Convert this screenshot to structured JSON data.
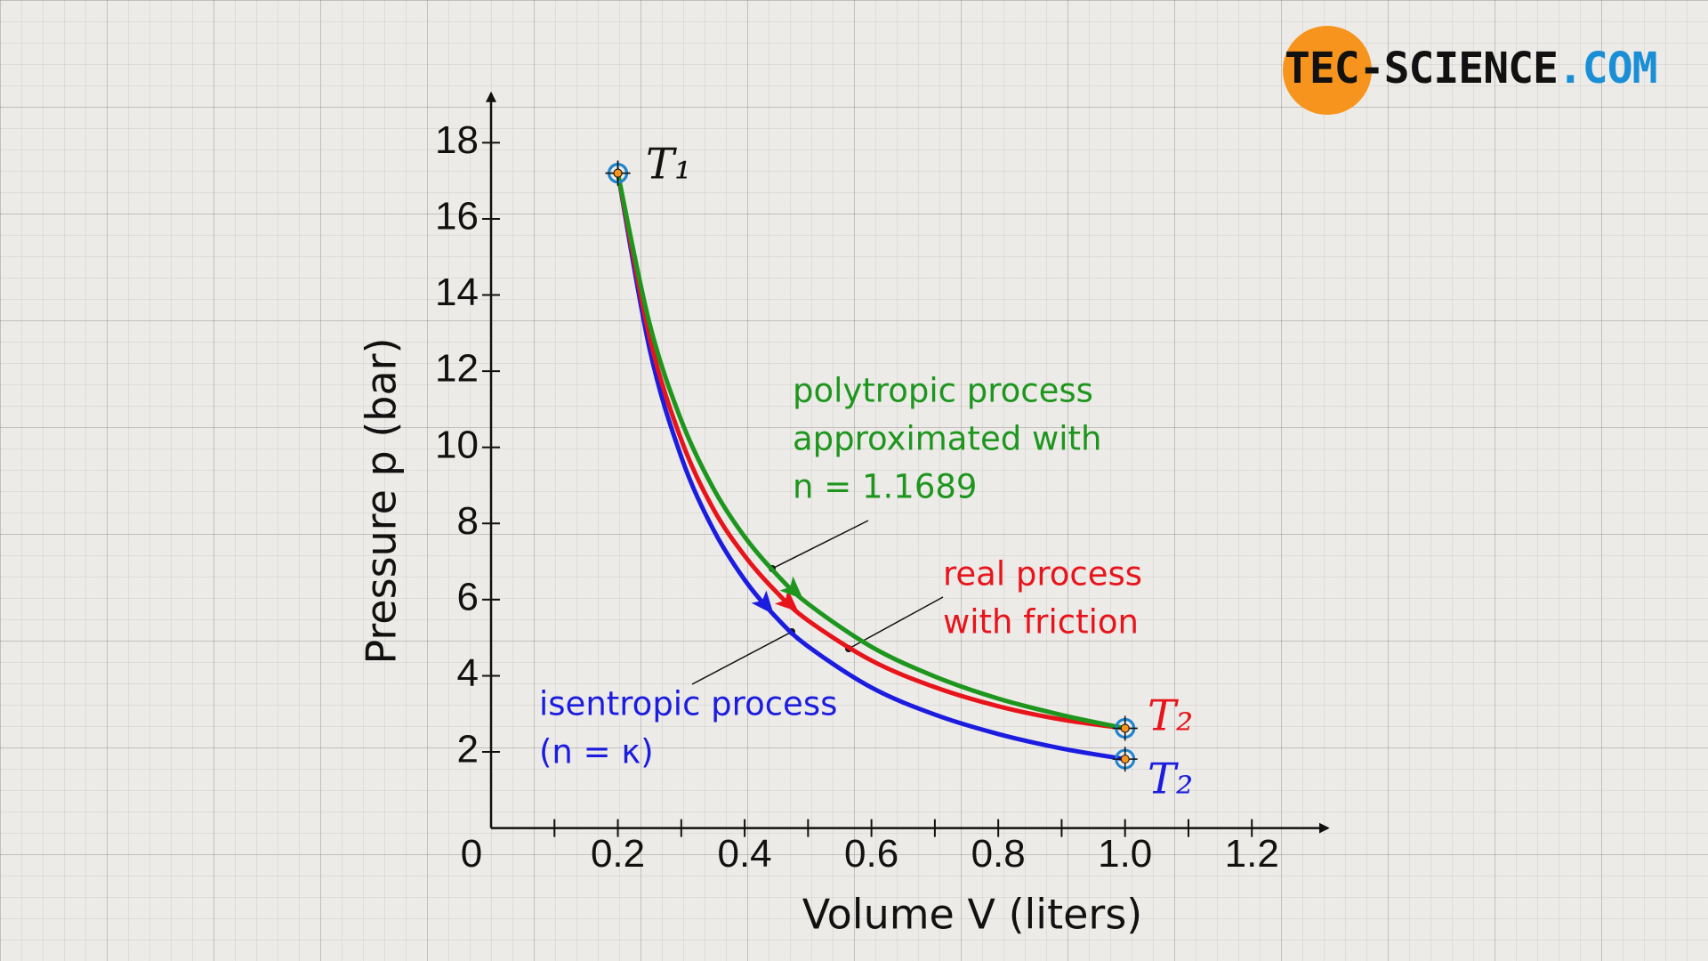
{
  "chart_data": {
    "type": "line",
    "x": [
      0.2,
      0.25,
      0.3,
      0.35,
      0.4,
      0.45,
      0.5,
      0.6,
      0.7,
      0.8,
      0.9,
      1.0
    ],
    "series": [
      {
        "color": "#1c1ce0",
        "values": [
          17.2,
          12.59,
          9.75,
          7.86,
          6.52,
          5.53,
          4.77,
          3.69,
          2.98,
          2.47,
          2.09,
          1.81
        ]
      },
      {
        "color": "#1e961e",
        "values": [
          17.2,
          13.25,
          10.71,
          8.94,
          7.65,
          6.67,
          5.89,
          4.76,
          3.98,
          3.4,
          2.97,
          2.62
        ]
      },
      {
        "color": "#e8141b",
        "values": [
          17.2,
          12.9,
          10.2,
          8.4,
          7.15,
          6.2,
          5.45,
          4.4,
          3.7,
          3.2,
          2.85,
          2.62
        ]
      }
    ],
    "xlabel": "Volume V (liters)",
    "ylabel": "Pressure p (bar)",
    "xlim": [
      0,
      1.32
    ],
    "ylim": [
      0,
      19.3
    ],
    "xticks": [
      0,
      0.2,
      0.4,
      0.6,
      0.8,
      {
        "value": 1,
        "label": "1.0"
      },
      1.2
    ],
    "xminorticks": [
      0.1,
      0.3,
      0.5,
      0.7,
      0.9,
      1.1
    ],
    "yticks": [
      2,
      4,
      6,
      8,
      10,
      12,
      14,
      16,
      18
    ],
    "annotations": [
      {
        "lines": [
          "polytropic process",
          "approximated with",
          "n = 1.1689"
        ],
        "color": "#1e961e"
      },
      {
        "lines": [
          "real process",
          "with friction"
        ],
        "color": "#e8141b"
      },
      {
        "lines": [
          "isentropic process",
          "(n = κ)"
        ],
        "color": "#1c1ce0"
      }
    ],
    "point_labels": [
      {
        "text": "T₁",
        "color": "#111111"
      },
      {
        "text": "T₂",
        "color": "#e8141b"
      },
      {
        "text": "T₂",
        "color": "#1c1ce0"
      }
    ]
  },
  "logo": [
    "TEC-SCIENCE",
    ".COM"
  ]
}
